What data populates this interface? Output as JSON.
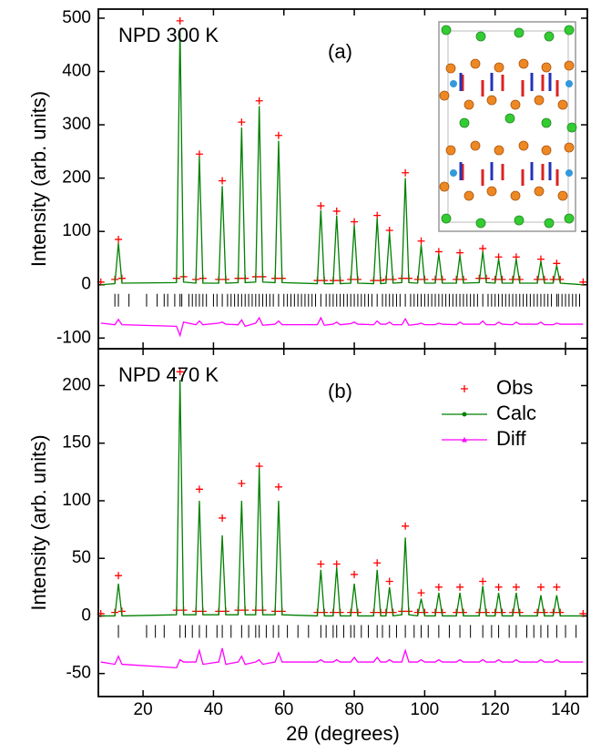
{
  "chart_data": [
    {
      "type": "line",
      "panel_label": "(a)",
      "annotation": "NPD 300 K",
      "y_label": "Intensity (arb. units)",
      "xlim": [
        7.3,
        146.2
      ],
      "xticks": [
        20,
        40,
        60,
        80,
        100,
        120,
        140
      ],
      "xtick_labels": false,
      "ylim": [
        -120,
        517
      ],
      "yticks": [
        -100,
        0,
        100,
        200,
        300,
        400,
        500
      ],
      "x": [
        8,
        12,
        13,
        14,
        29.5,
        30.5,
        31.5,
        35,
        36,
        37,
        41.5,
        42.5,
        43.5,
        47,
        48,
        49,
        52,
        53,
        54,
        57.5,
        58.5,
        59.5,
        69.5,
        70.5,
        71.5,
        74,
        75,
        76,
        79,
        80,
        81,
        85.5,
        86.5,
        87.5,
        89,
        90,
        91,
        93.5,
        94.5,
        95.5,
        98,
        99,
        100,
        103,
        104,
        105,
        109,
        110,
        111,
        115.5,
        116.5,
        117.5,
        120,
        121,
        122,
        125,
        126,
        127,
        132,
        133,
        134,
        136.5,
        137.5,
        138.5,
        145
      ],
      "series": [
        {
          "color": "#ff0000",
          "style": "markers",
          "values": [
            5,
            10,
            85,
            12,
            12,
            495,
            15,
            10,
            245,
            12,
            10,
            195,
            10,
            12,
            305,
            12,
            15,
            345,
            15,
            12,
            280,
            12,
            8,
            148,
            8,
            8,
            138,
            8,
            10,
            118,
            10,
            8,
            130,
            8,
            10,
            102,
            10,
            12,
            210,
            12,
            10,
            82,
            10,
            10,
            62,
            10,
            10,
            60,
            10,
            12,
            68,
            12,
            10,
            52,
            10,
            10,
            52,
            10,
            10,
            48,
            10,
            10,
            40,
            10,
            5
          ]
        },
        {
          "color": "#008000",
          "style": "line",
          "values": [
            0,
            2,
            78,
            3,
            4,
            480,
            5,
            3,
            240,
            3,
            3,
            185,
            3,
            4,
            295,
            4,
            5,
            335,
            5,
            4,
            270,
            4,
            2,
            140,
            2,
            2,
            130,
            2,
            3,
            112,
            3,
            2,
            125,
            2,
            3,
            98,
            3,
            4,
            200,
            4,
            3,
            75,
            3,
            3,
            58,
            3,
            3,
            55,
            3,
            4,
            62,
            4,
            3,
            48,
            3,
            3,
            48,
            3,
            3,
            44,
            3,
            3,
            36,
            3,
            0
          ]
        },
        {
          "color": "#ff00ff",
          "style": "line",
          "values": [
            -72,
            -75,
            -65,
            -75,
            -78,
            -95,
            -70,
            -75,
            -68,
            -75,
            -72,
            -70,
            -74,
            -75,
            -66,
            -78,
            -72,
            -62,
            -76,
            -74,
            -68,
            -75,
            -75,
            -62,
            -76,
            -74,
            -70,
            -75,
            -73,
            -70,
            -74,
            -75,
            -68,
            -74,
            -74,
            -70,
            -75,
            -75,
            -64,
            -76,
            -74,
            -72,
            -75,
            -75,
            -72,
            -74,
            -75,
            -70,
            -74,
            -74,
            -68,
            -75,
            -75,
            -70,
            -74,
            -75,
            -70,
            -74,
            -74,
            -70,
            -75,
            -75,
            -72,
            -74,
            -74
          ]
        }
      ],
      "bragg_ticks": [
        12,
        13,
        16,
        21,
        24,
        26,
        27,
        29,
        30.5,
        31,
        33,
        34,
        35,
        36,
        37,
        38,
        40,
        41,
        42.5,
        44,
        45,
        46,
        47,
        48,
        49,
        50,
        51,
        52,
        53,
        54,
        55,
        56,
        57,
        58.5,
        60,
        61,
        62,
        63,
        64,
        65,
        66,
        67,
        68,
        69,
        70.5,
        72,
        73,
        74,
        75,
        76,
        77,
        78,
        79,
        80,
        81,
        82,
        83,
        84,
        85,
        86.5,
        88,
        89,
        90,
        91,
        92,
        93,
        94.5,
        96,
        97,
        98,
        99,
        100,
        101,
        102,
        103,
        104,
        105,
        106,
        107,
        108,
        109,
        110,
        111,
        112,
        113,
        114,
        115,
        116.5,
        118,
        119,
        120,
        121,
        122,
        123,
        124,
        125,
        126,
        127,
        128,
        129,
        130,
        131,
        132,
        133,
        134,
        135,
        136,
        137.5,
        138,
        139,
        140,
        141,
        142,
        143,
        144
      ]
    },
    {
      "type": "line",
      "panel_label": "(b)",
      "annotation": "NPD 470 K",
      "y_label": "Intensity (arb. units)",
      "x_label": "2θ (degrees)",
      "xlim": [
        7.3,
        146.2
      ],
      "xticks": [
        20,
        40,
        60,
        80,
        100,
        120,
        140
      ],
      "xtick_labels": true,
      "ylim": [
        -70,
        232
      ],
      "yticks": [
        -50,
        0,
        50,
        100,
        150,
        200
      ],
      "legend": "upper right",
      "x": [
        8,
        12,
        13,
        14,
        29.5,
        30.5,
        31.5,
        35,
        36,
        37,
        41.5,
        42.5,
        43.5,
        47,
        48,
        49,
        52,
        53,
        54,
        57.5,
        58.5,
        59.5,
        69.5,
        70.5,
        71.5,
        74,
        75,
        76,
        79,
        80,
        81,
        85.5,
        86.5,
        87.5,
        89,
        90,
        91,
        93.5,
        94.5,
        95.5,
        98,
        99,
        100,
        103,
        104,
        105,
        109,
        110,
        111,
        115.5,
        116.5,
        117.5,
        120,
        121,
        122,
        125,
        126,
        127,
        132,
        133,
        134,
        136.5,
        137.5,
        138.5,
        145
      ],
      "series": [
        {
          "name": "Obs",
          "color": "#ff0000",
          "style": "markers",
          "marker": "plus",
          "values": [
            2,
            3,
            35,
            4,
            5,
            212,
            5,
            4,
            110,
            4,
            4,
            85,
            4,
            5,
            115,
            5,
            5,
            130,
            5,
            4,
            112,
            4,
            3,
            45,
            3,
            3,
            45,
            3,
            3,
            36,
            3,
            3,
            46,
            3,
            3,
            30,
            3,
            4,
            78,
            4,
            3,
            20,
            3,
            3,
            25,
            3,
            3,
            25,
            3,
            3,
            30,
            3,
            3,
            25,
            3,
            3,
            25,
            3,
            3,
            25,
            3,
            3,
            25,
            3,
            2
          ]
        },
        {
          "name": "Calc",
          "color": "#008000",
          "style": "line",
          "marker": "dot",
          "values": [
            0,
            0,
            28,
            0,
            1,
            205,
            1,
            1,
            100,
            1,
            1,
            70,
            1,
            1,
            100,
            1,
            1,
            128,
            1,
            1,
            100,
            1,
            0,
            40,
            0,
            0,
            42,
            0,
            0,
            28,
            0,
            0,
            40,
            0,
            0,
            25,
            0,
            1,
            68,
            1,
            0,
            15,
            0,
            0,
            20,
            0,
            0,
            20,
            0,
            0,
            26,
            0,
            0,
            20,
            0,
            0,
            20,
            0,
            0,
            18,
            0,
            0,
            18,
            0,
            0
          ]
        },
        {
          "name": "Diff",
          "color": "#ff00ff",
          "style": "line",
          "marker": "triangle",
          "values": [
            -40,
            -42,
            -35,
            -42,
            -45,
            -38,
            -40,
            -40,
            -30,
            -42,
            -40,
            -28,
            -42,
            -40,
            -35,
            -42,
            -40,
            -38,
            -42,
            -40,
            -32,
            -40,
            -40,
            -38,
            -40,
            -40,
            -38,
            -40,
            -40,
            -36,
            -40,
            -40,
            -36,
            -40,
            -40,
            -38,
            -40,
            -40,
            -30,
            -40,
            -40,
            -38,
            -40,
            -40,
            -38,
            -40,
            -40,
            -38,
            -40,
            -40,
            -38,
            -40,
            -40,
            -38,
            -40,
            -40,
            -38,
            -40,
            -40,
            -38,
            -40,
            -40,
            -38,
            -40,
            -40
          ]
        }
      ],
      "bragg_ticks": [
        13,
        21,
        23.5,
        26,
        30.5,
        32,
        34,
        36,
        38,
        41,
        42.5,
        45,
        48,
        50,
        52,
        53,
        55,
        57,
        58.5,
        61,
        64,
        67,
        70.5,
        72,
        74,
        75,
        77,
        79,
        80,
        82,
        84,
        86.5,
        88,
        90,
        92,
        94.5,
        97,
        99,
        101,
        104,
        107,
        110,
        113,
        116.5,
        119,
        121,
        124,
        126,
        129,
        131,
        133,
        135,
        137.5,
        140,
        143
      ]
    }
  ]
}
